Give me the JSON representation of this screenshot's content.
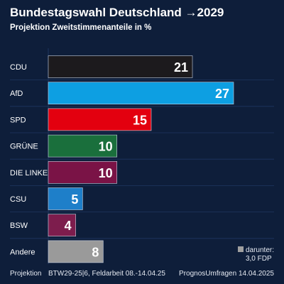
{
  "title": "Bundestagswahl Deutschland →2029",
  "subtitle": "Projektion Zweitstimmenanteile in %",
  "chart_data": {
    "type": "bar",
    "orientation": "horizontal",
    "title": "Bundestagswahl Deutschland →2029",
    "subtitle": "Projektion Zweitstimmenanteile in %",
    "categories": [
      "CDU",
      "AfD",
      "SPD",
      "GRÜNE",
      "DIE LINKE",
      "CSU",
      "BSW",
      "Andere"
    ],
    "values": [
      21,
      27,
      15,
      10,
      10,
      5,
      4,
      8
    ],
    "colors": [
      "#1c1a1d",
      "#0d9fe2",
      "#e3000f",
      "#1a6f3c",
      "#7a1346",
      "#1e7fc9",
      "#7d1d4d",
      "#9a9a9a"
    ],
    "xlim": [
      0,
      30
    ],
    "grid": true,
    "gridline_color": "#1f3660",
    "annotation": "darunter:\n3,0 FDP"
  },
  "footer": {
    "left": "Projektion",
    "middle": "BTW29-25|6, Feldarbeit 08.-14.04.25",
    "right": "PrognosUmfragen 14.04.2025"
  },
  "note": {
    "line1": "darunter:",
    "line2": "3,0 FDP"
  }
}
